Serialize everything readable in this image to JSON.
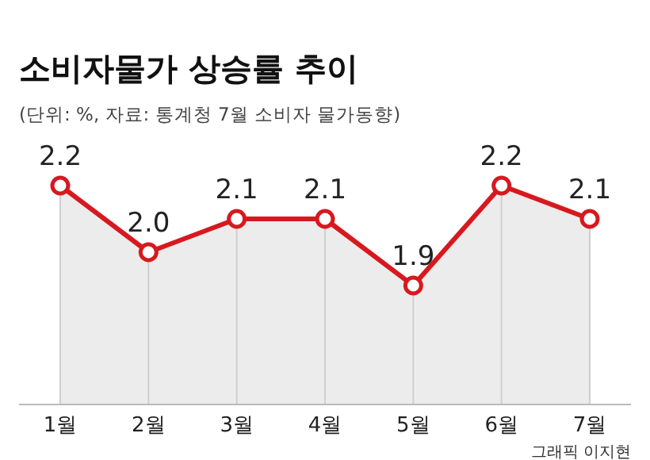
{
  "chart_data": {
    "type": "area",
    "title": "소비자물가 상승률 추이",
    "subtitle": "(단위: %, 자료: 통계청 7월 소비자 물가동향)",
    "categories": [
      "1월",
      "2월",
      "3월",
      "4월",
      "5월",
      "6월",
      "7월"
    ],
    "values": [
      2.2,
      2.0,
      2.1,
      2.1,
      1.9,
      2.2,
      2.1
    ],
    "value_labels": [
      "2.2",
      "2.0",
      "2.1",
      "2.1",
      "1.9",
      "2.2",
      "2.1"
    ],
    "color": "#d7191f",
    "marker": "circle",
    "annotations": [
      "그래픽 이지현"
    ]
  }
}
